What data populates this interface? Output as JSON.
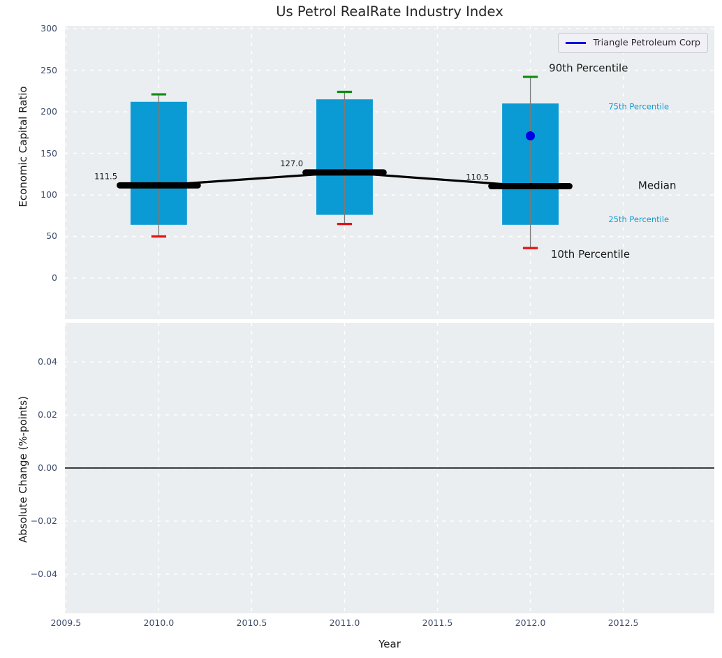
{
  "title": "Us Petrol RealRate Industry Index",
  "legend": {
    "label": "Triangle Petroleum Corp"
  },
  "colors": {
    "box_fill": "#0a9bd4",
    "median_line": "#000000",
    "whisker": "#7a7a7a",
    "cap_90th": "#0e8c0e",
    "cap_10th": "#e51111",
    "company": "#0000e6",
    "percentile_label": "#169bd5",
    "annotation_text": "#1a1a1a",
    "axes_background": "#ebeef0",
    "gridline": "#ffffff",
    "tick_label": "#3f4c6b",
    "zero_line": "#000000"
  },
  "chart_data": {
    "type": "boxplot",
    "title": "Us Petrol RealRate Industry Index",
    "xlabel": "Year",
    "xlim": [
      2009.495,
      2012.99
    ],
    "xticks": [
      2009.5,
      2010.0,
      2010.5,
      2011.0,
      2011.5,
      2012.0,
      2012.5
    ],
    "xtick_labels": [
      "2009.5",
      "2010.0",
      "2010.5",
      "2011.0",
      "2011.5",
      "2012.0",
      "2012.5"
    ],
    "grid": {
      "on": true,
      "style": "dashed",
      "color": "#ffffff"
    },
    "top_panel": {
      "ylabel": "Economic Capital Ratio",
      "ylim": [
        -49.6,
        303.4
      ],
      "yticks": [
        0,
        50,
        100,
        150,
        200,
        250,
        300
      ],
      "ytick_labels": [
        "0",
        "50",
        "100",
        "150",
        "200",
        "250",
        "300"
      ],
      "legend_entry": "Triangle Petroleum Corp",
      "legend_position": "upper right",
      "boxes": [
        {
          "year": 2010,
          "p10": 50,
          "p25": 64,
          "median": 111.5,
          "p75": 212,
          "p90": 221,
          "median_label": "111.5"
        },
        {
          "year": 2011,
          "p10": 65,
          "p25": 76,
          "median": 127.0,
          "p75": 215,
          "p90": 224,
          "median_label": "127.0"
        },
        {
          "year": 2012,
          "p10": 36,
          "p25": 64,
          "median": 110.5,
          "p75": 210,
          "p90": 242,
          "median_label": "110.5"
        }
      ],
      "median_trend_line": [
        {
          "x": 2010,
          "y": 111.5
        },
        {
          "x": 2011,
          "y": 127.0
        },
        {
          "x": 2012,
          "y": 110.5
        }
      ],
      "company_points": [
        {
          "name": "Triangle Petroleum Corp",
          "year": 2012,
          "value": 171
        }
      ],
      "annotations": [
        {
          "text": "90th Percentile",
          "x": 2012.1,
          "y": 252,
          "size": 15,
          "color": "#1a1a1a",
          "anchor": "start"
        },
        {
          "text": "75th Percentile",
          "x": 2012.42,
          "y": 206,
          "size": 11.5,
          "color": "#169bd5",
          "anchor": "start"
        },
        {
          "text": "Median",
          "x": 2012.58,
          "y": 111,
          "size": 15,
          "color": "#1a1a1a",
          "anchor": "start"
        },
        {
          "text": "25th Percentile",
          "x": 2012.42,
          "y": 70,
          "size": 11.5,
          "color": "#169bd5",
          "anchor": "start"
        },
        {
          "text": "10th Percentile",
          "x": 2012.11,
          "y": 28,
          "size": 15,
          "color": "#1a1a1a",
          "anchor": "start"
        }
      ]
    },
    "bottom_panel": {
      "ylabel": "Absolute Change (%-points)",
      "ylim": [
        -0.0547,
        0.0547
      ],
      "ytick_values": [
        0.04,
        0.02,
        0.0,
        -0.02,
        -0.04
      ],
      "ytick_labels": [
        "0.04",
        "0.02",
        "0.00",
        "−0.02",
        "−0.04"
      ],
      "zero_line": 0.0,
      "series": []
    }
  }
}
